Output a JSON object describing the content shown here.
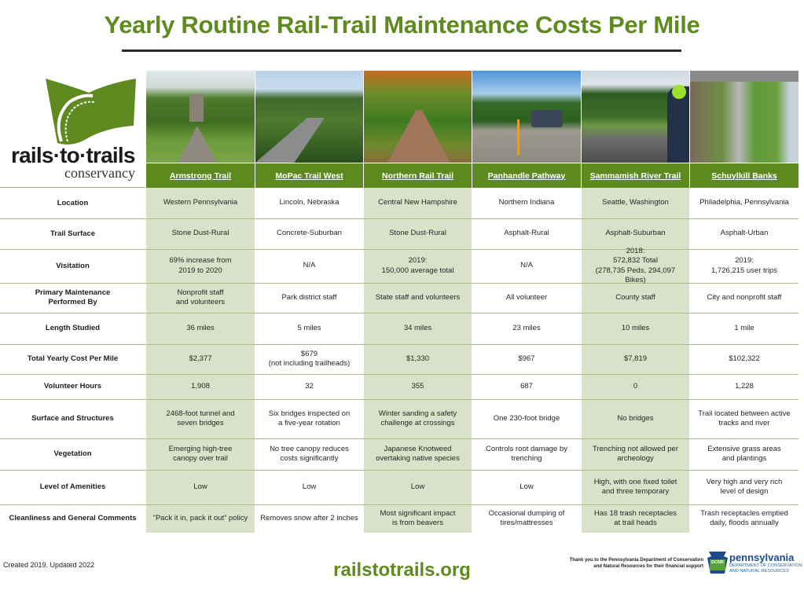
{
  "title": "Yearly Routine Rail-Trail Maintenance Costs Per Mile",
  "logo": {
    "wordmark": "rails·to·trails",
    "subtitle": "conservancy",
    "brand_color": "#5e8a1f"
  },
  "colors": {
    "header_green": "#5c8a1e",
    "shaded_column": "#d9e2c8",
    "row_divider": "#a7bd84",
    "title_green": "#5e8a1f"
  },
  "trails": [
    {
      "name": "Armstrong Trail",
      "photo": "tree-lined-gravel-trail-with-stone-tower"
    },
    {
      "name": "MoPac Trail West",
      "photo": "concrete-path-through-park"
    },
    {
      "name": "Northern Rail Trail",
      "photo": "autumn-leaf-covered-trail"
    },
    {
      "name": "Panhandle Pathway",
      "photo": "asphalt-trail-with-parked-trucks"
    },
    {
      "name": "Sammamish River Trail",
      "photo": "cyclists-on-asphalt-trail"
    },
    {
      "name": "Schuylkill Banks",
      "photo": "urban-riverside-trail-aerial"
    }
  ],
  "rows": [
    {
      "label": "Location",
      "values": [
        "Western Pennsylvania",
        "Lincoln, Nebraska",
        "Central New Hampshire",
        "Northern Indiana",
        "Seattle, Washington",
        "Philadelphia, Pennsylvania"
      ]
    },
    {
      "label": "Trail Surface",
      "values": [
        "Stone Dust-Rural",
        "Concrete-Suburban",
        "Stone Dust-Rural",
        "Asphalt-Rural",
        "Asphalt-Suburban",
        "Asphalt-Urban"
      ]
    },
    {
      "label": "Visitation",
      "values": [
        "69% increase from\n2019 to 2020",
        "N/A",
        "2019:\n150,000 average total",
        "N/A",
        "2018:\n572,832 Total\n(278,735 Peds, 294,097 Bikes)",
        "2019:\n1,726,215 user trips"
      ]
    },
    {
      "label": "Primary Maintenance\nPerformed By",
      "values": [
        "Nonprofit staff\nand volunteers",
        "Park district staff",
        "State staff and volunteers",
        "All volunteer",
        "County staff",
        "City and nonprofit staff"
      ]
    },
    {
      "label": "Length Studied",
      "values": [
        "36 miles",
        "5 miles",
        "34 miles",
        "23 miles",
        "10 miles",
        "1 mile"
      ]
    },
    {
      "label": "Total Yearly Cost Per Mile",
      "values": [
        "$2,377",
        "$679\n(not including trailheads)",
        "$1,330",
        "$967",
        "$7,819",
        "$102,322"
      ]
    },
    {
      "label": "Volunteer Hours",
      "values": [
        "1,908",
        "32",
        "355",
        "687",
        "0",
        "1,228"
      ]
    },
    {
      "label": "Surface and Structures",
      "values": [
        "2468-foot tunnel and\nseven bridges",
        "Six bridges inspected on\na five-year rotation",
        "Winter sanding a safety\nchallenge at crossings",
        "One 230-foot bridge",
        "No bridges",
        "Trail located between active\ntracks and river"
      ]
    },
    {
      "label": "Vegetation",
      "values": [
        "Emerging high-tree\ncanopy over trail",
        "No tree canopy reduces\ncosts significantly",
        "Japanese Knotweed\novertaking native species",
        "Controls root damage by\ntrenching",
        "Trenching not allowed per\narcheology",
        "Extensive grass areas\nand plantings"
      ]
    },
    {
      "label": "Level of Amenities",
      "values": [
        "Low",
        "Low",
        "Low",
        "Low",
        "High, with one fixed toilet\nand three temporary",
        "Very high and very rich\nlevel of design"
      ]
    },
    {
      "label": "Cleanliness and General Comments",
      "values": [
        "“Pack it in, pack it out” policy",
        "Removes snow after 2 inches",
        "Most significant impact\nis from beavers",
        "Occasional dumping of\ntires/mattresses",
        "Has 18 trash receptacles\nat trail heads",
        "Trash receptacles emptied\ndaily, floods annually"
      ]
    }
  ],
  "footer": {
    "created": "Created 2019. Updated 2022",
    "website": "railstotrails.org",
    "thanks": "Thank you to the Pennsylvania Department of Conservation\nand Natural Resources for their financial support",
    "sponsor_badge": "DCNR",
    "sponsor_name": "pennsylvania",
    "sponsor_sub": "DEPARTMENT OF CONSERVATION\nAND NATURAL RESOURCES"
  },
  "chart_data": {
    "type": "table",
    "title": "Yearly Routine Rail-Trail Maintenance Costs Per Mile",
    "columns": [
      "Armstrong Trail",
      "MoPac Trail West",
      "Northern Rail Trail",
      "Panhandle Pathway",
      "Sammamish River Trail",
      "Schuylkill Banks"
    ],
    "total_yearly_cost_per_mile_usd": [
      2377,
      679,
      1330,
      967,
      7819,
      102322
    ],
    "length_studied_miles": [
      36,
      5,
      34,
      23,
      10,
      1
    ],
    "volunteer_hours": [
      1908,
      32,
      355,
      687,
      0,
      1228
    ]
  }
}
